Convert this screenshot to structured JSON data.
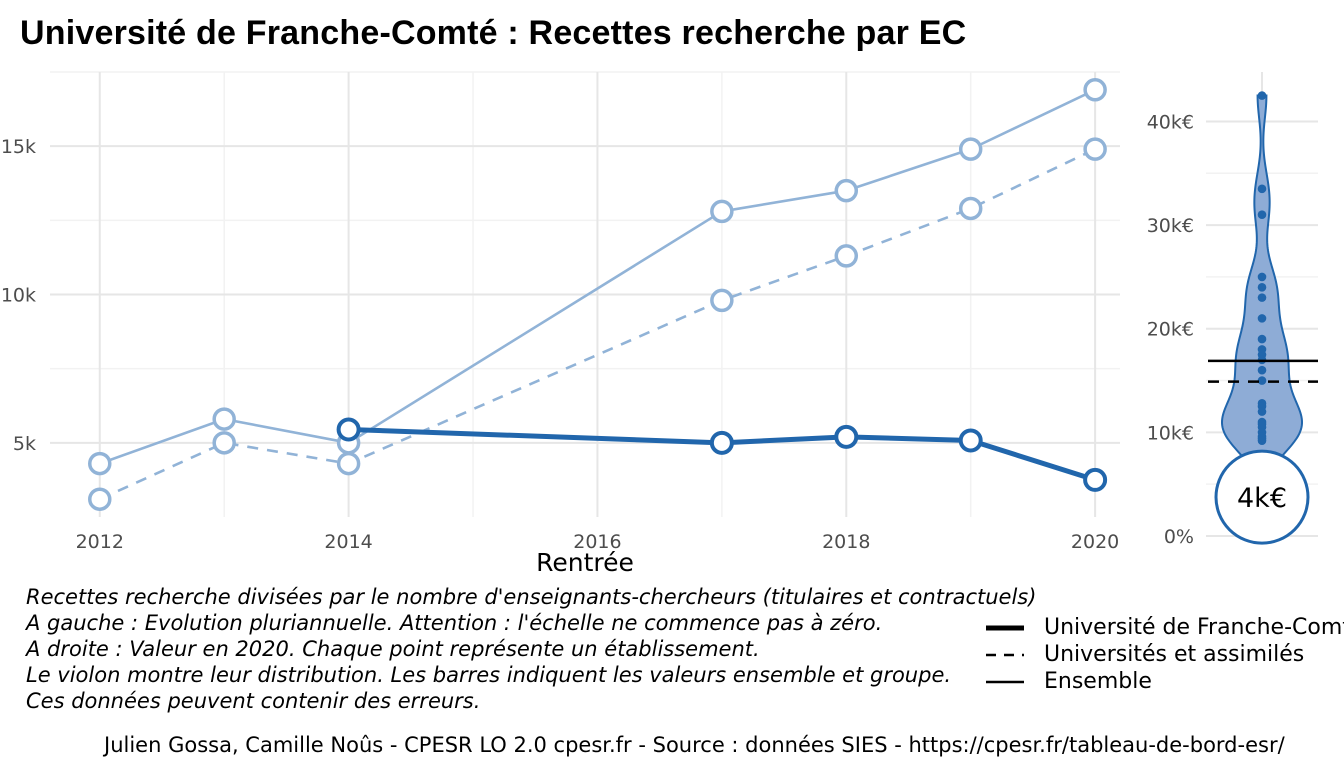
{
  "title": "Université de Franche-Comté  :  Recettes recherche par EC",
  "chart_data": [
    {
      "type": "line",
      "title": "Université de Franche-Comté  :  Recettes recherche par EC",
      "xlabel": "Rentrée",
      "ylabel": "",
      "x_ticks": [
        2012,
        2014,
        2016,
        2018,
        2020
      ],
      "y_ticks": [
        {
          "value": 5000,
          "label": "5k"
        },
        {
          "value": 10000,
          "label": "10k"
        },
        {
          "value": 15000,
          "label": "15k"
        }
      ],
      "xlim": [
        2011.6,
        2020.2
      ],
      "ylim": [
        2500,
        17500
      ],
      "grid": true,
      "series": [
        {
          "name": "Université de Franche-Comté",
          "style": "solid-thick",
          "color": "#2166ac",
          "x": [
            2014,
            2017,
            2018,
            2019,
            2020
          ],
          "values": [
            5450,
            5000,
            5200,
            5080,
            3750
          ]
        },
        {
          "name": "Universités et assimilés",
          "style": "dashed",
          "color": "#91b3d7",
          "x": [
            2012,
            2013,
            2014,
            2017,
            2018,
            2019,
            2020
          ],
          "values": [
            3100,
            5000,
            4300,
            9800,
            11300,
            12900,
            14900
          ]
        },
        {
          "name": "Ensemble",
          "style": "solid",
          "color": "#91b3d7",
          "x": [
            2012,
            2013,
            2014,
            2017,
            2018,
            2019,
            2020
          ],
          "values": [
            4300,
            5800,
            5000,
            12800,
            13500,
            14900,
            16900
          ]
        }
      ]
    },
    {
      "type": "violin",
      "y_ticks": [
        {
          "value": 0,
          "label": "0%"
        },
        {
          "value": 10000,
          "label": "10k€"
        },
        {
          "value": 20000,
          "label": "20k€"
        },
        {
          "value": 30000,
          "label": "30k€"
        },
        {
          "value": 40000,
          "label": "40k€"
        }
      ],
      "ylim": [
        0,
        44000
      ],
      "points": [
        42500,
        33500,
        31000,
        25000,
        24000,
        23000,
        21000,
        19000,
        18000,
        17500,
        17000,
        16000,
        15000,
        12800,
        12500,
        12000,
        11000,
        10800,
        10500,
        10000,
        9600,
        9400,
        9200
      ],
      "ensemble_value": 16900,
      "group_value": 14900,
      "institution_value": 3750,
      "institution_label": "4k€",
      "color": "#2166ac"
    }
  ],
  "notes": [
    "Recettes recherche divisées par le nombre d'enseignants-chercheurs (titulaires et contractuels)",
    "A gauche : Evolution pluriannuelle. Attention : l'échelle ne commence pas à zéro.",
    "A droite : Valeur en 2020. Chaque point représente un établissement.",
    "Le violon montre leur distribution. Les barres indiquent les valeurs ensemble et groupe.",
    "Ces données peuvent contenir des erreurs."
  ],
  "legend": [
    {
      "label": "Université de Franche-Comté",
      "style": "solid-thick"
    },
    {
      "label": "Universités et assimilés",
      "style": "dashed"
    },
    {
      "label": "Ensemble",
      "style": "solid"
    }
  ],
  "footer": "Julien Gossa, Camille Noûs - CPESR LO 2.0 cpesr.fr - Source : données SIES - https://cpesr.fr/tableau-de-bord-esr/"
}
